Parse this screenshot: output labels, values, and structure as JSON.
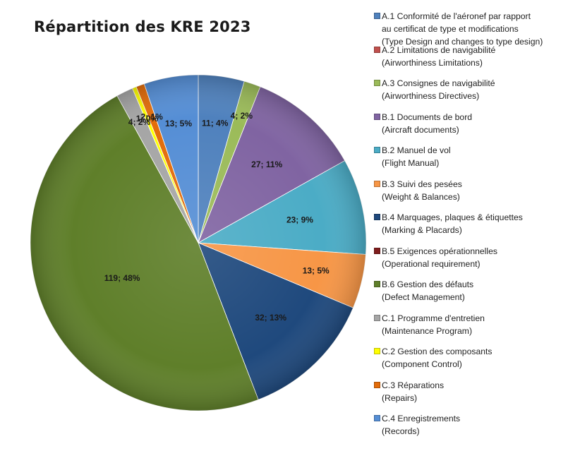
{
  "chart_data": {
    "type": "pie",
    "title": "Répartition des KRE 2023",
    "slices": [
      {
        "category": "A.1",
        "legend": [
          "A.1 Conformité de l'aéronef par rapport",
          "au certificat de type et modifications",
          "(Type Design and changes to type design)"
        ],
        "value": 11,
        "label": "11; 4%",
        "color": "#4f81bd"
      },
      {
        "category": "A.2",
        "legend": [
          "A.2 Limitations de navigabilité",
          "(Airworthiness Limitations)"
        ],
        "value": 0,
        "label": "",
        "color": "#c0504d"
      },
      {
        "category": "A.3",
        "legend": [
          "A.3 Consignes de navigabilité",
          "(Airworthiness Directives)"
        ],
        "value": 4,
        "label": "4; 2%",
        "color": "#9bbb59"
      },
      {
        "category": "B.1",
        "legend": [
          "B.1 Documents de bord",
          "(Aircraft documents)"
        ],
        "value": 27,
        "label": "27; 11%",
        "color": "#8064a2"
      },
      {
        "category": "B.2",
        "legend": [
          "B.2 Manuel de vol",
          "(Flight Manual)"
        ],
        "value": 23,
        "label": "23; 9%",
        "color": "#4bacc6"
      },
      {
        "category": "B.3",
        "legend": [
          "B.3 Suivi des pesées",
          "(Weight  & Balances)"
        ],
        "value": 13,
        "label": "13; 5%",
        "color": "#f79646"
      },
      {
        "category": "B.4",
        "legend": [
          "B.4 Marquages, plaques & étiquettes",
          "(Marking & Placards)"
        ],
        "value": 32,
        "label": "32; 13%",
        "color": "#1f497d"
      },
      {
        "category": "B.5",
        "legend": [
          "B.5 Exigences opérationnelles",
          "(Operational requirement)"
        ],
        "value": 0,
        "label": "",
        "color": "#7f1d1d"
      },
      {
        "category": "B.6",
        "legend": [
          "B.6 Gestion des défauts",
          "(Defect Management)"
        ],
        "value": 119,
        "label": "119; 48%",
        "color": "#5f7f2a"
      },
      {
        "category": "C.1",
        "legend": [
          "C.1 Programme d'entretien",
          "(Maintenance Program)"
        ],
        "value": 4,
        "label": "4; 2%",
        "color": "#a6a6a6"
      },
      {
        "category": "C.2",
        "legend": [
          "C.2 Gestion  des composants",
          "(Component Control)"
        ],
        "value": 1,
        "label": "1; 0%",
        "color": "#ffff00"
      },
      {
        "category": "C.3",
        "legend": [
          "C.3 Réparations",
          "(Repairs)"
        ],
        "value": 2,
        "label": "2; 1%",
        "color": "#e36c09"
      },
      {
        "category": "C.4",
        "legend": [
          "C.4 Enregistrements",
          "(Records)"
        ],
        "value": 13,
        "label": "13; 5%",
        "color": "#558ed5"
      }
    ],
    "legend_position": "right"
  }
}
